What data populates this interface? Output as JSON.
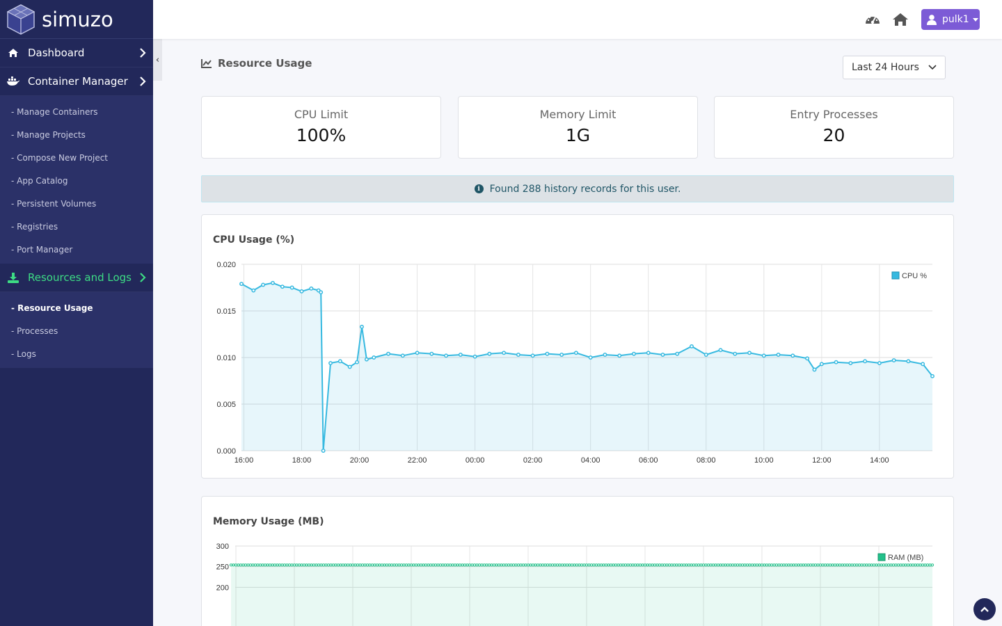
{
  "brand": {
    "name": "simuzo"
  },
  "sidebar": {
    "sections": [
      {
        "label": "Dashboard",
        "icon": "home-icon"
      },
      {
        "label": "Container Manager",
        "icon": "docker-icon",
        "items": [
          "- Manage Containers",
          "- Manage Projects",
          "- Compose New Project",
          "- App Catalog",
          "- Persistent Volumes",
          "- Registries",
          "- Port Manager"
        ]
      },
      {
        "label": "Resources and Logs",
        "icon": "download-icon",
        "items": [
          "- Resource Usage",
          "- Processes",
          "- Logs"
        ]
      }
    ],
    "collapse_glyph": "‹"
  },
  "topbar": {
    "user": "pulk1",
    "icons": [
      "dashboard-gauge-icon",
      "home-icon",
      "user-icon"
    ]
  },
  "page": {
    "title": "Resource Usage",
    "range": {
      "selected": "Last 24 Hours"
    },
    "stats": [
      {
        "label": "CPU Limit",
        "value": "100%"
      },
      {
        "label": "Memory Limit",
        "value": "1G"
      },
      {
        "label": "Entry Processes",
        "value": "20"
      }
    ],
    "alert": "Found 288 history records for this user."
  },
  "colors": {
    "sidebar": "#22285a",
    "accent_green": "#3ddc84",
    "user_button": "#7c5bd6",
    "cpu_line": "#36b9e0",
    "ram_line": "#22c08a"
  },
  "chart_data": [
    {
      "type": "line",
      "title": "CPU Usage (%)",
      "legend": "CPU %",
      "legend_position": "top-right",
      "ylim": [
        0,
        0.02
      ],
      "yticks": [
        "0.000",
        "0.005",
        "0.010",
        "0.015",
        "0.020"
      ],
      "xticks": [
        "16:00",
        "18:00",
        "20:00",
        "22:00",
        "00:00",
        "02:00",
        "04:00",
        "06:00",
        "08:00",
        "10:00",
        "12:00",
        "14:00"
      ],
      "x": [
        "15:55",
        "16:20",
        "16:40",
        "17:00",
        "17:20",
        "17:40",
        "18:00",
        "18:20",
        "18:35",
        "18:40",
        "18:45",
        "19:00",
        "19:20",
        "19:40",
        "19:55",
        "20:05",
        "20:15",
        "20:30",
        "21:00",
        "21:30",
        "22:00",
        "22:30",
        "23:00",
        "23:30",
        "00:00",
        "00:30",
        "01:00",
        "01:30",
        "02:00",
        "02:30",
        "03:00",
        "03:30",
        "04:00",
        "04:30",
        "05:00",
        "05:30",
        "06:00",
        "06:30",
        "07:00",
        "07:30",
        "08:00",
        "08:30",
        "09:00",
        "09:30",
        "10:00",
        "10:30",
        "11:00",
        "11:30",
        "11:45",
        "12:00",
        "12:30",
        "13:00",
        "13:30",
        "14:00",
        "14:30",
        "15:00",
        "15:30",
        "15:50"
      ],
      "y": [
        0.0179,
        0.0172,
        0.0178,
        0.018,
        0.0176,
        0.0175,
        0.0171,
        0.0174,
        0.0172,
        0.017,
        0.0,
        0.0094,
        0.0096,
        0.009,
        0.0095,
        0.0133,
        0.0098,
        0.01,
        0.0104,
        0.0102,
        0.0105,
        0.0104,
        0.0102,
        0.0103,
        0.0101,
        0.0104,
        0.0105,
        0.0103,
        0.0102,
        0.0104,
        0.0103,
        0.0105,
        0.01,
        0.0103,
        0.0102,
        0.0104,
        0.0105,
        0.0103,
        0.0104,
        0.0112,
        0.0103,
        0.0108,
        0.0104,
        0.0105,
        0.0102,
        0.0103,
        0.0102,
        0.0099,
        0.0087,
        0.0093,
        0.0095,
        0.0094,
        0.0096,
        0.0094,
        0.0097,
        0.0096,
        0.0093,
        0.008
      ]
    },
    {
      "type": "line",
      "title": "Memory Usage (MB)",
      "legend": "RAM (MB)",
      "legend_position": "top-right",
      "ylim": [
        0,
        300
      ],
      "yticks": [
        "300",
        "250",
        "200"
      ],
      "x_start": "15:55",
      "x_end": "15:50",
      "y_constant": 254
    }
  ]
}
